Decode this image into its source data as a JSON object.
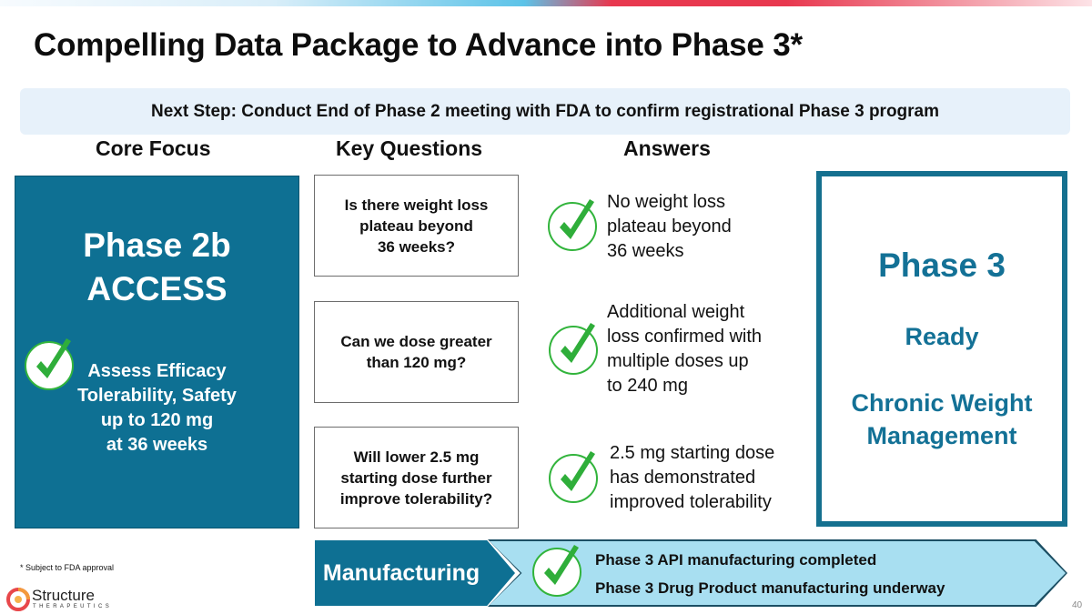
{
  "title": "Compelling Data Package to Advance into Phase 3*",
  "banner": "Next Step: Conduct End of Phase 2 meeting with FDA to confirm registrational Phase 3 program",
  "columns": {
    "core_focus": "Core Focus",
    "key_questions": "Key Questions",
    "answers": "Answers"
  },
  "phase2b": {
    "title_line1": "Phase 2b",
    "title_line2": "ACCESS",
    "desc_lines": [
      "Assess Efficacy",
      "Tolerability, Safety",
      "up to 120 mg",
      "at 36 weeks"
    ]
  },
  "questions": [
    {
      "lines": [
        "Is there weight loss",
        "plateau beyond",
        "36 weeks?"
      ]
    },
    {
      "lines": [
        "Can we dose greater",
        "than 120 mg?"
      ]
    },
    {
      "lines": [
        "Will lower 2.5 mg",
        "starting dose further",
        "improve tolerability?"
      ]
    }
  ],
  "answers": [
    {
      "lines": [
        "No weight loss",
        "plateau beyond",
        "36 weeks"
      ]
    },
    {
      "lines": [
        "Additional weight",
        "loss confirmed with",
        "multiple doses  up",
        "to 240 mg"
      ]
    },
    {
      "lines": [
        "2.5 mg starting dose",
        "has demonstrated",
        "improved tolerability"
      ]
    }
  ],
  "phase3": {
    "title": "Phase 3",
    "status": "Ready",
    "indication_line1": "Chronic Weight",
    "indication_line2": "Management"
  },
  "manufacturing": {
    "label": "Manufacturing",
    "items": [
      "Phase 3 API manufacturing completed",
      "Phase 3 Drug Product manufacturing underway"
    ]
  },
  "footnote": "* Subject to FDA approval",
  "logo": {
    "name": "Structure",
    "sub": "THERAPEUTICS"
  },
  "page_number": "40",
  "colors": {
    "teal": "#0e7093",
    "phase3_text": "#137196",
    "check_green": "#32b43c",
    "arrow_light": "#a8dff1",
    "banner_bg": "#e7f1fa"
  },
  "icons": {
    "check": "check-icon"
  }
}
